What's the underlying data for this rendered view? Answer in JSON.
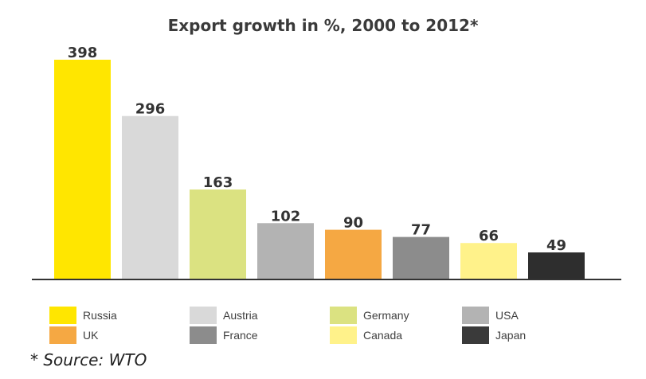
{
  "chart_data": {
    "type": "bar",
    "title": "Export growth in %, 2000 to 2012*",
    "xlabel": "",
    "ylabel": "",
    "ylim": [
      0,
      398
    ],
    "grid": false,
    "legend_position": "bottom",
    "categories": [
      "Russia",
      "Austria",
      "Germany",
      "USA",
      "UK",
      "France",
      "Canada",
      "Japan"
    ],
    "values": [
      398,
      296,
      163,
      102,
      90,
      77,
      66,
      49
    ],
    "colors": [
      "#ffe600",
      "#d9d9d9",
      "#dbe281",
      "#b3b3b3",
      "#f5a843",
      "#8c8c8c",
      "#fff28a",
      "#2e2e2e"
    ],
    "legend": [
      {
        "label": "Russia",
        "color": "#ffe600"
      },
      {
        "label": "Austria",
        "color": "#d9d9d9"
      },
      {
        "label": "Germany",
        "color": "#dbe281"
      },
      {
        "label": "USA",
        "color": "#b3b3b3"
      },
      {
        "label": "UK",
        "color": "#f5a843"
      },
      {
        "label": "France",
        "color": "#8c8c8c"
      },
      {
        "label": "Canada",
        "color": "#fff28a"
      },
      {
        "label": "Japan",
        "color": "#3a3a3a"
      }
    ],
    "source_note": "* Source: WTO"
  }
}
